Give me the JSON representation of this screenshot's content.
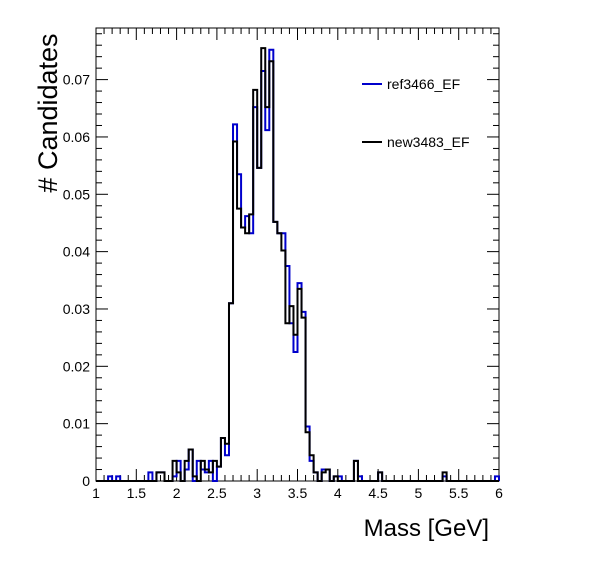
{
  "chart_data": {
    "type": "histogram",
    "xlabel": "Mass [GeV]",
    "ylabel": "# Candidates",
    "xlim": [
      1,
      6
    ],
    "ylim": [
      0,
      0.079
    ],
    "x_ticks": [
      1,
      1.5,
      2,
      2.5,
      3,
      3.5,
      4,
      4.5,
      5,
      5.5,
      6
    ],
    "y_ticks": [
      0,
      0.01,
      0.02,
      0.03,
      0.04,
      0.05,
      0.06,
      0.07
    ],
    "grid": false,
    "legend": "top-right",
    "bin_width": 0.05,
    "series": [
      {
        "name": "ref3466_EF",
        "color": "#0000cc",
        "bins": [
          {
            "x": 1.15,
            "y": 0.0008
          },
          {
            "x": 1.25,
            "y": 0.0008
          },
          {
            "x": 1.65,
            "y": 0.0015
          },
          {
            "x": 1.75,
            "y": 0.0015
          },
          {
            "x": 1.8,
            "y": 0.0015
          },
          {
            "x": 1.95,
            "y": 0.0008
          },
          {
            "x": 2.0,
            "y": 0.0035
          },
          {
            "x": 2.1,
            "y": 0.002
          },
          {
            "x": 2.15,
            "y": 0.0055
          },
          {
            "x": 2.25,
            "y": 0.0035
          },
          {
            "x": 2.3,
            "y": 0.002
          },
          {
            "x": 2.35,
            "y": 0.0015
          },
          {
            "x": 2.4,
            "y": 0.0035
          },
          {
            "x": 2.5,
            "y": 0.0025
          },
          {
            "x": 2.55,
            "y": 0.0075
          },
          {
            "x": 2.6,
            "y": 0.0045
          },
          {
            "x": 2.65,
            "y": 0.031
          },
          {
            "x": 2.7,
            "y": 0.0622
          },
          {
            "x": 2.75,
            "y": 0.0535
          },
          {
            "x": 2.8,
            "y": 0.0442
          },
          {
            "x": 2.85,
            "y": 0.0462
          },
          {
            "x": 2.9,
            "y": 0.0432
          },
          {
            "x": 2.95,
            "y": 0.0652
          },
          {
            "x": 3.0,
            "y": 0.0546
          },
          {
            "x": 3.05,
            "y": 0.0715
          },
          {
            "x": 3.1,
            "y": 0.0612
          },
          {
            "x": 3.15,
            "y": 0.0752
          },
          {
            "x": 3.2,
            "y": 0.0452
          },
          {
            "x": 3.25,
            "y": 0.0432
          },
          {
            "x": 3.3,
            "y": 0.0432
          },
          {
            "x": 3.35,
            "y": 0.0375
          },
          {
            "x": 3.4,
            "y": 0.0275
          },
          {
            "x": 3.45,
            "y": 0.0225
          },
          {
            "x": 3.5,
            "y": 0.0345
          },
          {
            "x": 3.55,
            "y": 0.0295
          },
          {
            "x": 3.6,
            "y": 0.0095
          },
          {
            "x": 3.65,
            "y": 0.0035
          },
          {
            "x": 3.7,
            "y": 0.0015
          },
          {
            "x": 3.8,
            "y": 0.002
          },
          {
            "x": 3.85,
            "y": 0.002
          },
          {
            "x": 3.95,
            "y": 0.0008
          },
          {
            "x": 4.0,
            "y": 0.0008
          },
          {
            "x": 4.2,
            "y": 0.0035
          },
          {
            "x": 4.25,
            "y": 0.0008
          },
          {
            "x": 4.5,
            "y": 0.0015
          },
          {
            "x": 5.3,
            "y": 0.0008
          },
          {
            "x": 5.95,
            "y": 0.0008
          }
        ]
      },
      {
        "name": "new3483_EF",
        "color": "#000000",
        "bins": [
          {
            "x": 1.75,
            "y": 0.0015
          },
          {
            "x": 1.8,
            "y": 0.0015
          },
          {
            "x": 1.95,
            "y": 0.0035
          },
          {
            "x": 2.0,
            "y": 0.0015
          },
          {
            "x": 2.1,
            "y": 0.0035
          },
          {
            "x": 2.15,
            "y": 0.0055
          },
          {
            "x": 2.2,
            "y": 0.0008
          },
          {
            "x": 2.3,
            "y": 0.0035
          },
          {
            "x": 2.35,
            "y": 0.002
          },
          {
            "x": 2.4,
            "y": 0.0015
          },
          {
            "x": 2.45,
            "y": 0.0035
          },
          {
            "x": 2.5,
            "y": 0.0025
          },
          {
            "x": 2.55,
            "y": 0.0075
          },
          {
            "x": 2.6,
            "y": 0.0065
          },
          {
            "x": 2.65,
            "y": 0.031
          },
          {
            "x": 2.7,
            "y": 0.0592
          },
          {
            "x": 2.75,
            "y": 0.0475
          },
          {
            "x": 2.8,
            "y": 0.0442
          },
          {
            "x": 2.85,
            "y": 0.0432
          },
          {
            "x": 2.9,
            "y": 0.0465
          },
          {
            "x": 2.95,
            "y": 0.0682
          },
          {
            "x": 3.0,
            "y": 0.0546
          },
          {
            "x": 3.05,
            "y": 0.0755
          },
          {
            "x": 3.1,
            "y": 0.0652
          },
          {
            "x": 3.15,
            "y": 0.0732
          },
          {
            "x": 3.2,
            "y": 0.0452
          },
          {
            "x": 3.25,
            "y": 0.0432
          },
          {
            "x": 3.3,
            "y": 0.0402
          },
          {
            "x": 3.35,
            "y": 0.0275
          },
          {
            "x": 3.4,
            "y": 0.0305
          },
          {
            "x": 3.45,
            "y": 0.0255
          },
          {
            "x": 3.5,
            "y": 0.0335
          },
          {
            "x": 3.55,
            "y": 0.0285
          },
          {
            "x": 3.6,
            "y": 0.0085
          },
          {
            "x": 3.65,
            "y": 0.0045
          },
          {
            "x": 3.7,
            "y": 0.0015
          },
          {
            "x": 3.8,
            "y": 0.0015
          },
          {
            "x": 3.85,
            "y": 0.002
          },
          {
            "x": 3.95,
            "y": 0.0008
          },
          {
            "x": 4.2,
            "y": 0.0035
          },
          {
            "x": 4.5,
            "y": 0.0015
          },
          {
            "x": 5.3,
            "y": 0.0015
          }
        ]
      }
    ]
  }
}
